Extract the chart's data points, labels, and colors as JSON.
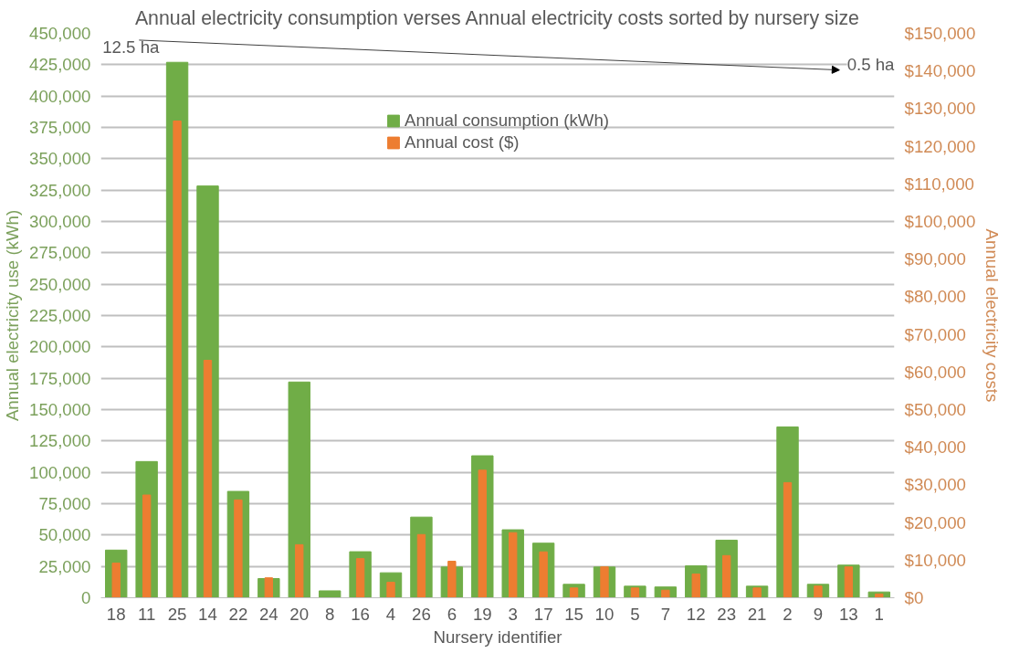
{
  "chart_data": {
    "type": "bar",
    "title": "Annual electricity consumption verses Annual electricity costs sorted by nursery size",
    "xlabel": "Nursery identifier",
    "ylabel": "Annual electricity use (kWh)",
    "y2label": "Annual electricity costs",
    "categories": [
      "18",
      "11",
      "25",
      "14",
      "22",
      "24",
      "20",
      "8",
      "16",
      "4",
      "26",
      "6",
      "19",
      "3",
      "17",
      "15",
      "10",
      "5",
      "7",
      "12",
      "23",
      "21",
      "2",
      "9",
      "13",
      "1"
    ],
    "series": [
      {
        "name": "Annual consumption (kWh)",
        "color": "#70ad47",
        "values": [
          38000,
          108600,
          426900,
          328300,
          84800,
          15300,
          172000,
          5500,
          36700,
          19900,
          64300,
          24500,
          113200,
          54200,
          43500,
          10700,
          24500,
          9200,
          8600,
          25400,
          45900,
          9200,
          136200,
          10700,
          26000,
          4600
        ]
      },
      {
        "name": "Annual cost ($)",
        "color": "#ed7d31",
        "axis": "y2",
        "values": [
          9200,
          27300,
          126700,
          63100,
          26000,
          5300,
          14100,
          0,
          10400,
          4100,
          16800,
          9700,
          33900,
          17300,
          12200,
          2600,
          8200,
          2600,
          2000,
          6300,
          11200,
          2600,
          30600,
          3100,
          8200,
          1000
        ]
      }
    ],
    "ylim": [
      0,
      450000
    ],
    "yticks": [
      0,
      {
        "value": 25000,
        "label": "25,000"
      },
      {
        "value": 50000,
        "label": "50,000"
      },
      {
        "value": 75000,
        "label": "75,000"
      },
      {
        "value": 100000,
        "label": "100,000"
      },
      {
        "value": 125000,
        "label": "125,000"
      },
      {
        "value": 150000,
        "label": "150,000"
      },
      {
        "value": 175000,
        "label": "175,000"
      },
      {
        "value": 200000,
        "label": "200,000"
      },
      {
        "value": 225000,
        "label": "225,000"
      },
      {
        "value": 250000,
        "label": "250,000"
      },
      {
        "value": 275000,
        "label": "275,000"
      },
      {
        "value": 300000,
        "label": "300,000"
      },
      {
        "value": 325000,
        "label": "325,000"
      },
      {
        "value": 350000,
        "label": "350,000"
      },
      {
        "value": 375000,
        "label": "375,000"
      },
      {
        "value": 400000,
        "label": "400,000"
      },
      {
        "value": 425000,
        "label": "425,000"
      },
      {
        "value": 450000,
        "label": "450,000"
      }
    ],
    "y2lim": [
      0,
      150000
    ],
    "y2ticks": [
      {
        "value": 0,
        "label": "$0"
      },
      {
        "value": 10000,
        "label": "$10,000"
      },
      {
        "value": 20000,
        "label": "$20,000"
      },
      {
        "value": 30000,
        "label": "$30,000"
      },
      {
        "value": 40000,
        "label": "$40,000"
      },
      {
        "value": 50000,
        "label": "$50,000"
      },
      {
        "value": 60000,
        "label": "$60,000"
      },
      {
        "value": 70000,
        "label": "$70,000"
      },
      {
        "value": 80000,
        "label": "$80,000"
      },
      {
        "value": 90000,
        "label": "$90,000"
      },
      {
        "value": 100000,
        "label": "$100,000"
      },
      {
        "value": 110000,
        "label": "$110,000"
      },
      {
        "value": 120000,
        "label": "$120,000"
      },
      {
        "value": 130000,
        "label": "$130,000"
      },
      {
        "value": 140000,
        "label": "$140,000"
      },
      {
        "value": 150000,
        "label": "$150,000"
      }
    ],
    "annotations": [
      "12.5 ha",
      "0.5 ha"
    ],
    "grid": "y",
    "legend": "top"
  }
}
